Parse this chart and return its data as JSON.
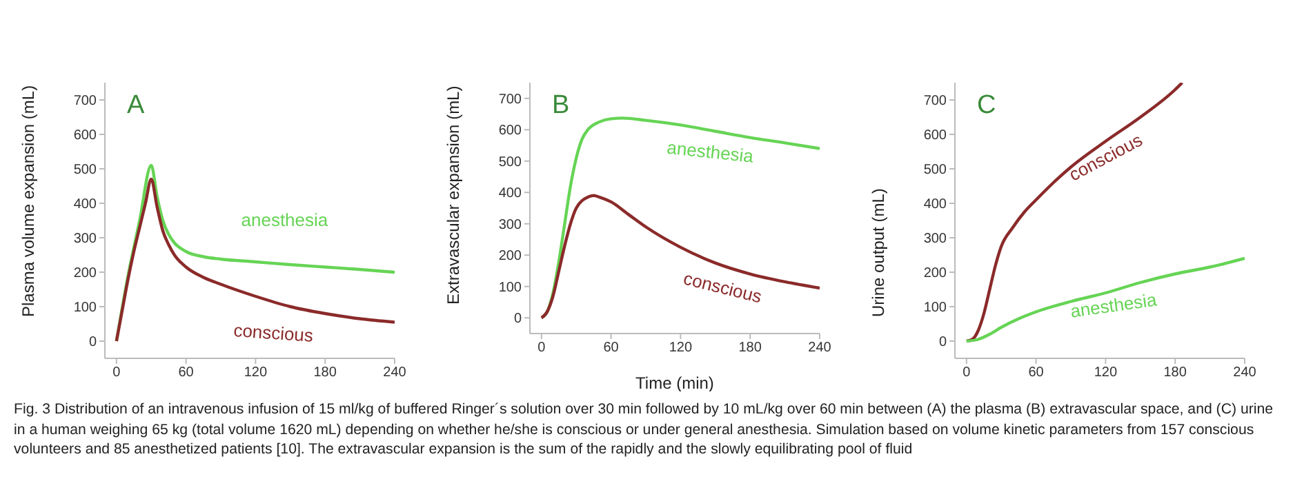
{
  "chart_data": [
    {
      "type": "line",
      "title": "A",
      "ylabel": "Plasma volume expansion (mL)",
      "xlim": [
        -10,
        240
      ],
      "xticks": [
        0,
        60,
        120,
        180,
        240
      ],
      "ylim": [
        -50,
        750
      ],
      "yticks": [
        0,
        100,
        200,
        300,
        400,
        500,
        600,
        700
      ],
      "marker": "none",
      "line_style": "solid",
      "series": [
        {
          "name": "anesthesia",
          "color": "#66d455",
          "x": [
            0,
            10,
            20,
            30,
            35,
            40,
            45,
            50,
            60,
            75,
            90,
            120,
            150,
            180,
            210,
            240
          ],
          "values": [
            0,
            190,
            350,
            510,
            420,
            350,
            310,
            285,
            260,
            245,
            238,
            230,
            222,
            215,
            208,
            200
          ]
        },
        {
          "name": "conscious",
          "color": "#8b2a2a",
          "x": [
            0,
            5,
            10,
            15,
            20,
            25,
            30,
            35,
            40,
            45,
            50,
            60,
            75,
            90,
            120,
            150,
            180,
            210,
            240
          ],
          "values": [
            0,
            90,
            180,
            260,
            330,
            400,
            470,
            390,
            320,
            280,
            250,
            215,
            185,
            165,
            130,
            100,
            80,
            65,
            55
          ]
        }
      ],
      "annotations": [
        "Fig. 3  Distribution of an intravenous infusion of 15 ml/kg of buffered Ringer´s solution over 30 min followed by 10 mL/kg over 60 min between (A) the plasma (B) extravascular space, and (C) urine in a human weighing 65 kg (total volume 1620 mL) depending on whether he/she is conscious or under general anesthesia. Simulation based on volume kinetic parameters from 157 conscious volunteers and 85 anesthetized patients [10]. The extravascular expansion is the sum of the rapidly and the slowly equilibrating pool of fluid"
      ]
    },
    {
      "type": "line",
      "title": "B",
      "xlabel": "Time (min)",
      "ylabel": "Extravascular expansion (mL)",
      "xlim": [
        -10,
        240
      ],
      "xticks": [
        0,
        60,
        120,
        180,
        240
      ],
      "ylim": [
        -50,
        750
      ],
      "yticks": [
        0,
        100,
        200,
        300,
        400,
        500,
        600,
        700
      ],
      "marker": "none",
      "line_style": "solid",
      "series": [
        {
          "name": "anesthesia",
          "color": "#66d455",
          "x": [
            0,
            5,
            10,
            15,
            20,
            25,
            30,
            35,
            40,
            50,
            60,
            70,
            90,
            120,
            150,
            180,
            210,
            240
          ],
          "values": [
            0,
            20,
            80,
            180,
            300,
            420,
            510,
            570,
            600,
            625,
            635,
            637,
            630,
            615,
            595,
            575,
            558,
            540
          ]
        },
        {
          "name": "conscious",
          "color": "#8b2a2a",
          "x": [
            0,
            5,
            10,
            15,
            20,
            25,
            30,
            40,
            45,
            50,
            60,
            75,
            90,
            120,
            150,
            180,
            210,
            240
          ],
          "values": [
            0,
            20,
            70,
            150,
            230,
            300,
            350,
            385,
            390,
            385,
            370,
            330,
            290,
            225,
            175,
            140,
            115,
            95
          ]
        }
      ]
    },
    {
      "type": "line",
      "title": "C",
      "ylabel": "Urine output (mL)",
      "xlim": [
        -10,
        240
      ],
      "xticks": [
        0,
        60,
        120,
        180,
        240
      ],
      "ylim": [
        -50,
        750
      ],
      "yticks": [
        0,
        100,
        200,
        300,
        400,
        500,
        600,
        700
      ],
      "marker": "none",
      "line_style": "solid",
      "series": [
        {
          "name": "conscious",
          "color": "#8b2a2a",
          "x": [
            0,
            5,
            10,
            15,
            20,
            25,
            30,
            40,
            50,
            60,
            75,
            90,
            120,
            150,
            180,
            186
          ],
          "values": [
            0,
            5,
            30,
            80,
            150,
            220,
            275,
            330,
            375,
            410,
            460,
            505,
            580,
            650,
            730,
            750
          ]
        },
        {
          "name": "anesthesia",
          "color": "#66d455",
          "x": [
            0,
            10,
            20,
            30,
            45,
            60,
            90,
            120,
            150,
            180,
            210,
            240
          ],
          "values": [
            0,
            5,
            20,
            40,
            65,
            85,
            115,
            140,
            170,
            195,
            215,
            240
          ]
        }
      ]
    }
  ]
}
